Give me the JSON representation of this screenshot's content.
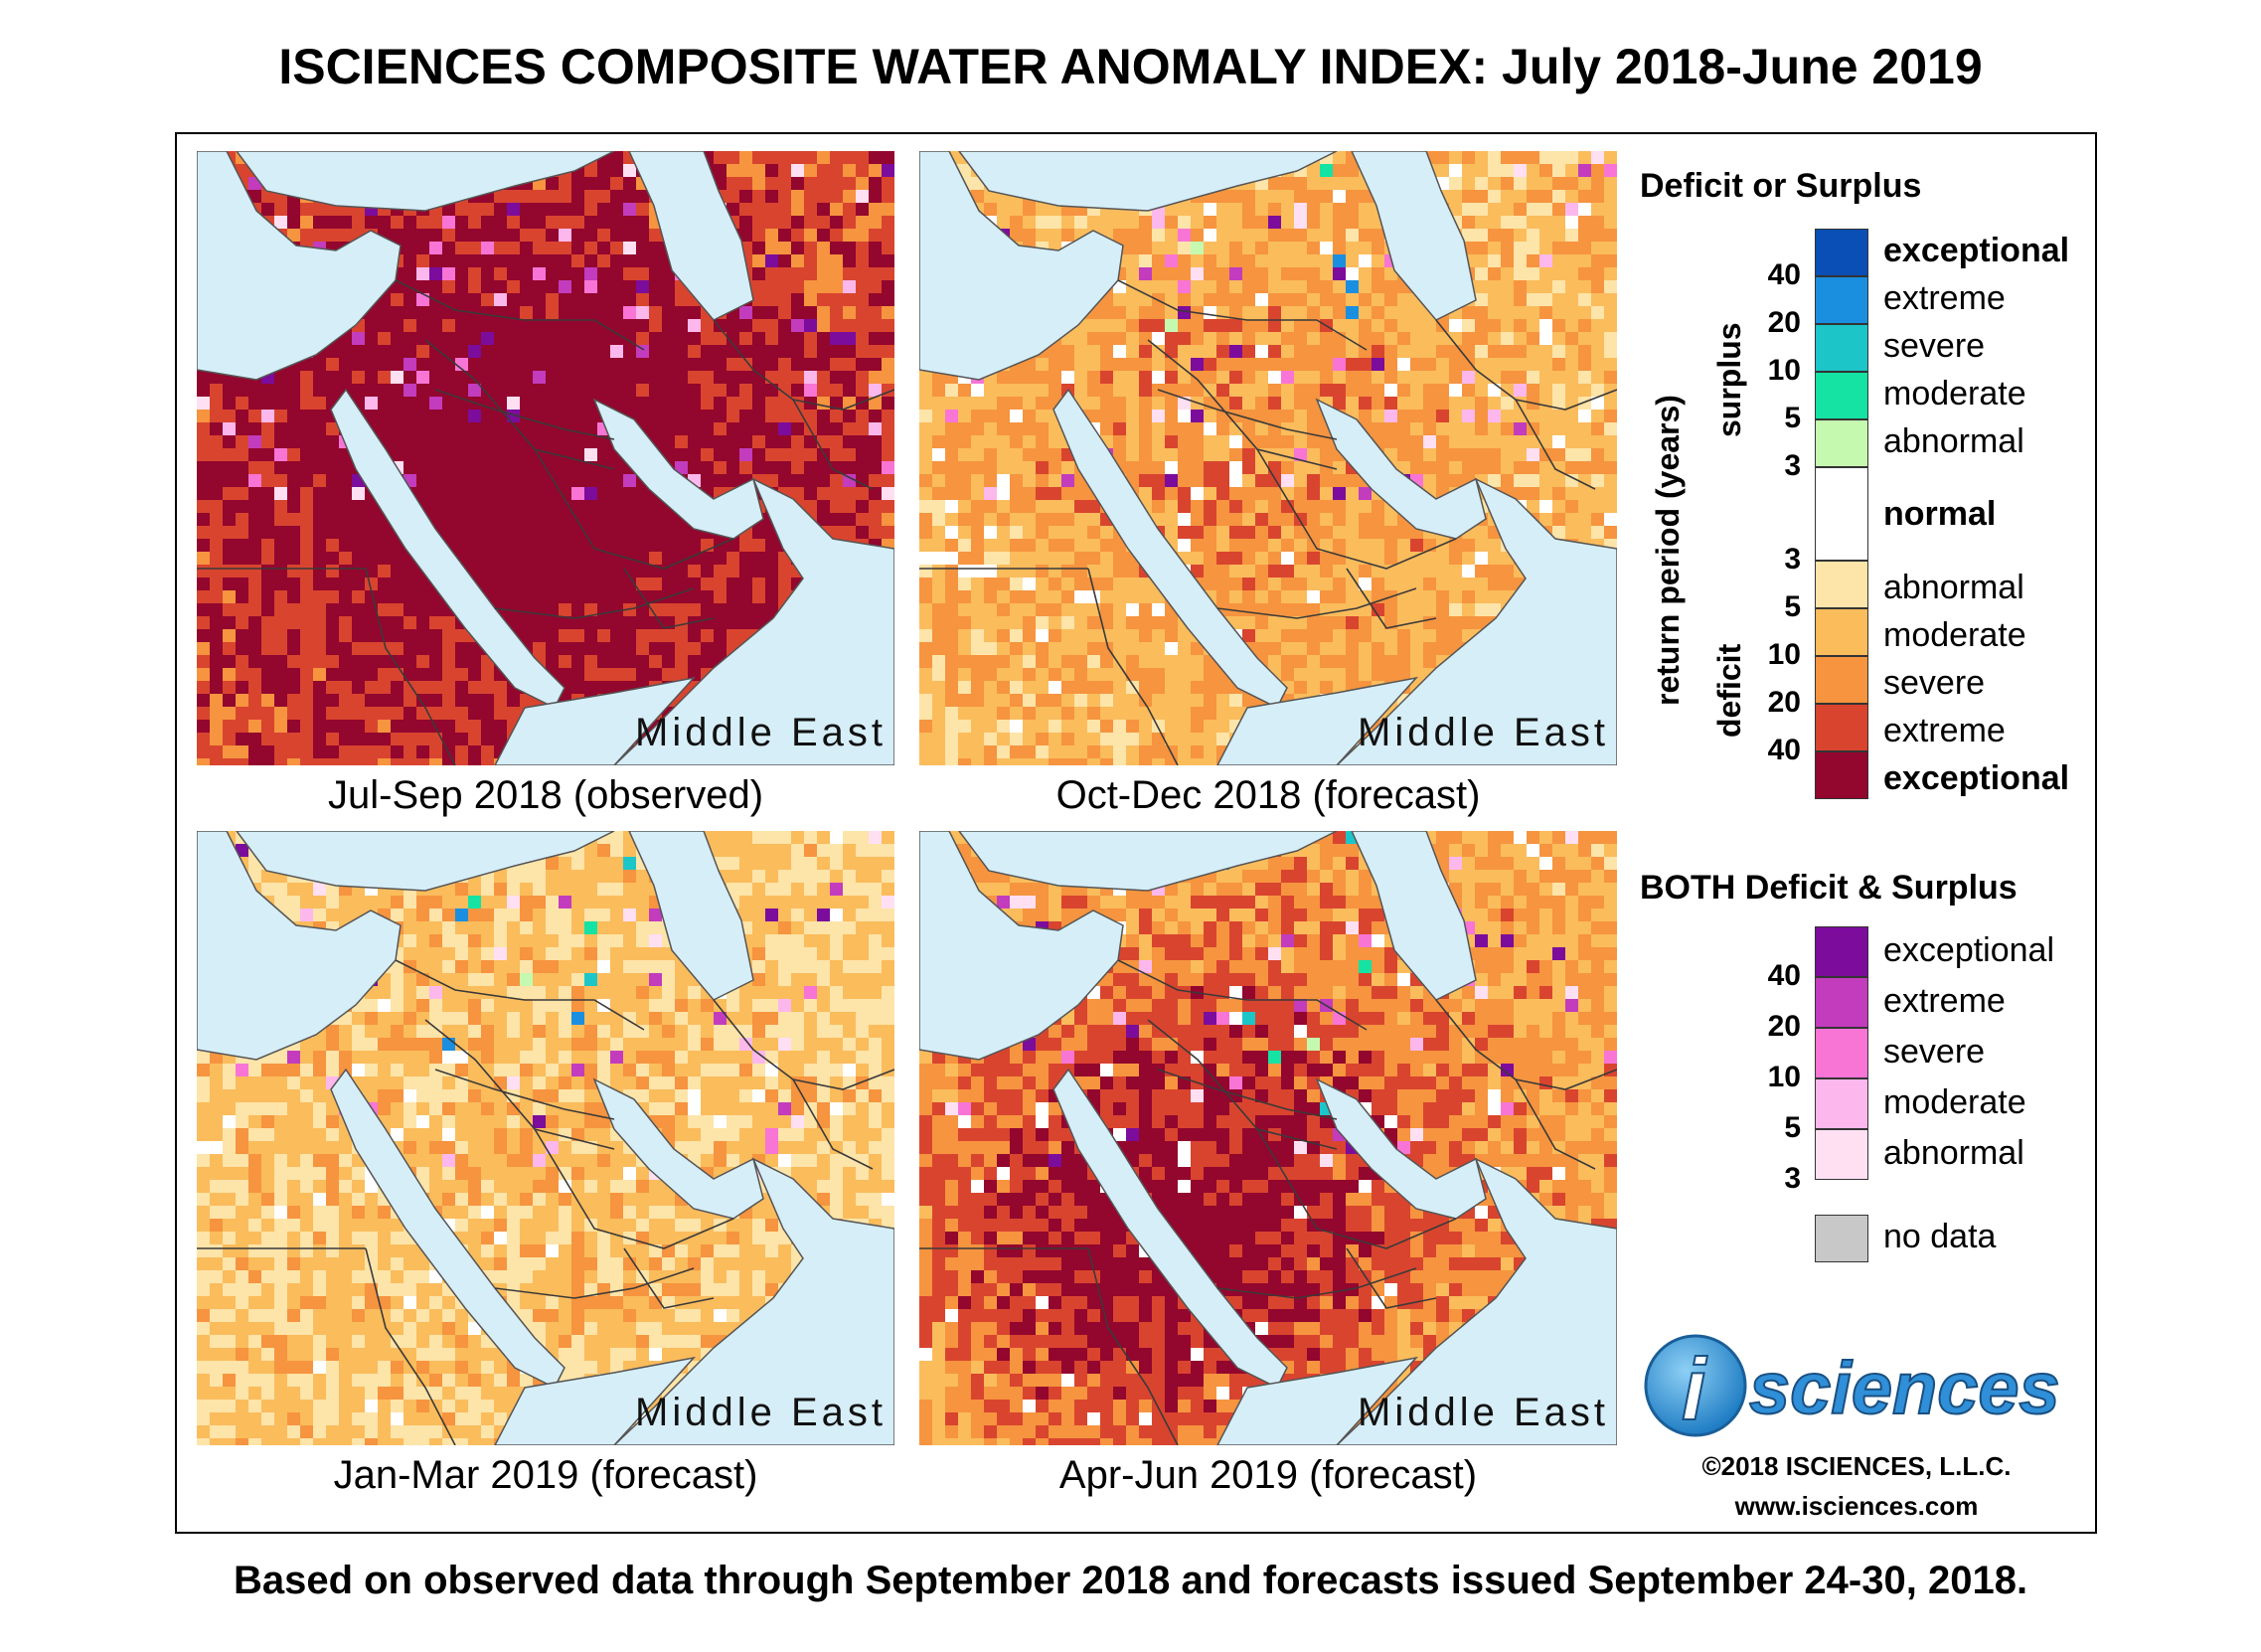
{
  "title": "ISCIENCES COMPOSITE WATER ANOMALY INDEX: July 2018-June 2019",
  "maps": [
    {
      "region": "Middle East",
      "caption": "Jul-Sep 2018 (observed)",
      "intensity": 4
    },
    {
      "region": "Middle East",
      "caption": "Oct-Dec 2018 (forecast)",
      "intensity": 2
    },
    {
      "region": "Middle East",
      "caption": "Jan-Mar 2019 (forecast)",
      "intensity": 1
    },
    {
      "region": "Middle East",
      "caption": "Apr-Jun 2019 (forecast)",
      "intensity": 3
    }
  ],
  "legend": {
    "heading1": "Deficit or Surplus",
    "axis_label": "return period (years)",
    "surplus_label": "surplus",
    "deficit_label": "deficit",
    "surplus": [
      {
        "label": "exceptional",
        "color": "#0a4fb5",
        "bold": true
      },
      {
        "label": "extreme",
        "color": "#1a8fe0",
        "bold": false
      },
      {
        "label": "severe",
        "color": "#1cc6c8",
        "bold": false
      },
      {
        "label": "moderate",
        "color": "#14e3a3",
        "bold": false
      },
      {
        "label": "abnormal",
        "color": "#c6f9b0",
        "bold": false
      }
    ],
    "normal": {
      "label": "normal",
      "color": "#ffffff"
    },
    "deficit": [
      {
        "label": "abnormal",
        "color": "#fde4a9",
        "bold": false
      },
      {
        "label": "moderate",
        "color": "#fbbc5c",
        "bold": false
      },
      {
        "label": "severe",
        "color": "#f6943f",
        "bold": false
      },
      {
        "label": "extreme",
        "color": "#d9442f",
        "bold": false
      },
      {
        "label": "exceptional",
        "color": "#93062d",
        "bold": true
      }
    ],
    "surplus_ticks": [
      "40",
      "20",
      "10",
      "5",
      "3"
    ],
    "deficit_ticks": [
      "3",
      "5",
      "10",
      "20",
      "40"
    ],
    "heading2": "BOTH Deficit & Surplus",
    "both": [
      {
        "label": "exceptional",
        "color": "#7c0c9c"
      },
      {
        "label": "extreme",
        "color": "#c23cbd"
      },
      {
        "label": "severe",
        "color": "#f875d5"
      },
      {
        "label": "moderate",
        "color": "#fcb8ec"
      },
      {
        "label": "abnormal",
        "color": "#ffe0f3"
      }
    ],
    "both_ticks": [
      "40",
      "20",
      "10",
      "5",
      "3"
    ],
    "nodata": {
      "label": "no data",
      "color": "#c8c8c8"
    }
  },
  "logo_text": "sciences",
  "logo_i": "i",
  "copyright": "©2018 ISCIENCES, L.L.C.",
  "website": "www.isciences.com",
  "footer": "Based on observed data through September 2018 and forecasts issued September 24-30, 2018.",
  "colors": {
    "water": "#d6eef8",
    "border": "#3a3a3a"
  }
}
